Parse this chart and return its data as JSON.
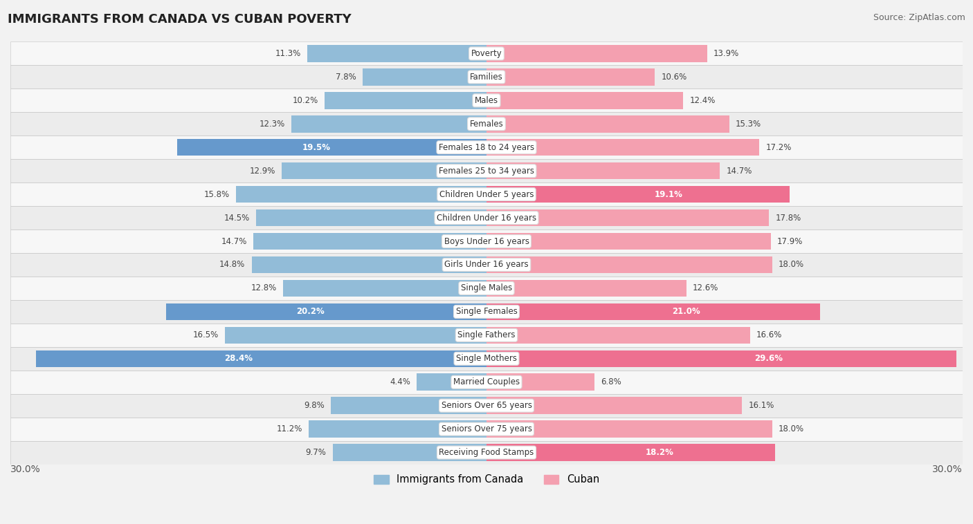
{
  "title": "IMMIGRANTS FROM CANADA VS CUBAN POVERTY",
  "source": "Source: ZipAtlas.com",
  "categories": [
    "Poverty",
    "Families",
    "Males",
    "Females",
    "Females 18 to 24 years",
    "Females 25 to 34 years",
    "Children Under 5 years",
    "Children Under 16 years",
    "Boys Under 16 years",
    "Girls Under 16 years",
    "Single Males",
    "Single Females",
    "Single Fathers",
    "Single Mothers",
    "Married Couples",
    "Seniors Over 65 years",
    "Seniors Over 75 years",
    "Receiving Food Stamps"
  ],
  "canada_values": [
    11.3,
    7.8,
    10.2,
    12.3,
    19.5,
    12.9,
    15.8,
    14.5,
    14.7,
    14.8,
    12.8,
    20.2,
    16.5,
    28.4,
    4.4,
    9.8,
    11.2,
    9.7
  ],
  "cuban_values": [
    13.9,
    10.6,
    12.4,
    15.3,
    17.2,
    14.7,
    19.1,
    17.8,
    17.9,
    18.0,
    12.6,
    21.0,
    16.6,
    29.6,
    6.8,
    16.1,
    18.0,
    18.2
  ],
  "canada_color_normal": "#92bcd8",
  "canada_color_highlight": "#6699cc",
  "cuban_color_normal": "#f4a0b0",
  "cuban_color_highlight": "#ee7090",
  "canada_highlight_indices": [
    4,
    11,
    13
  ],
  "cuban_highlight_indices": [
    6,
    11,
    13,
    17
  ],
  "row_colors": [
    "#f7f7f7",
    "#ececec"
  ],
  "max_value": 30.0,
  "legend_canada": "Immigrants from Canada",
  "legend_cuban": "Cuban",
  "fig_bg": "#f2f2f2",
  "bar_height": 0.72,
  "title_fontsize": 13,
  "source_fontsize": 9,
  "value_fontsize": 8.5,
  "cat_fontsize": 8.5
}
